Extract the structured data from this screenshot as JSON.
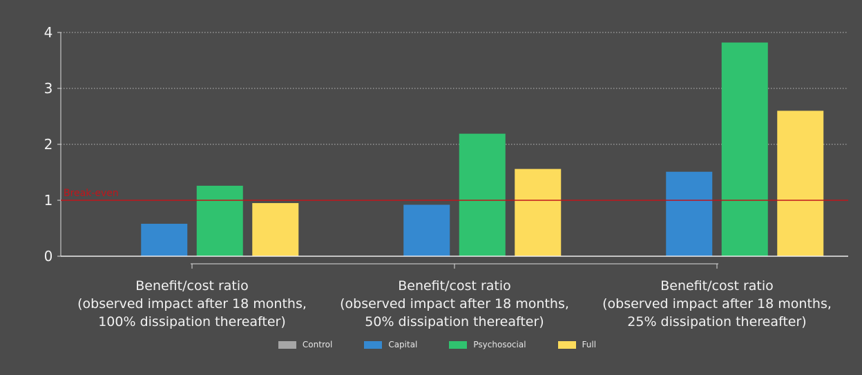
{
  "chart_data": {
    "type": "bar",
    "categories": [
      [
        "Benefit/cost ratio",
        "(observed impact after 18 months,",
        "100% dissipation thereafter)"
      ],
      [
        "Benefit/cost ratio",
        "(observed impact after 18 months,",
        "50% dissipation thereafter)"
      ],
      [
        "Benefit/cost ratio",
        "(observed impact after 18 months,",
        "25% dissipation thereafter)"
      ]
    ],
    "series": [
      {
        "name": "Control",
        "color": "#a6a6a6",
        "values": [
          null,
          null,
          null
        ]
      },
      {
        "name": "Capital",
        "color": "#3589d0",
        "values": [
          0.58,
          0.92,
          1.51
        ]
      },
      {
        "name": "Psychosocial",
        "color": "#30c26f",
        "values": [
          1.26,
          2.19,
          3.82
        ]
      },
      {
        "name": "Full",
        "color": "#fddc5c",
        "values": [
          0.95,
          1.56,
          2.6
        ]
      }
    ],
    "ylim": [
      0,
      4
    ],
    "yticks": [
      0,
      1,
      2,
      3,
      4
    ],
    "grid": "horizontal-dotted",
    "reference_line": {
      "value": 1,
      "label": "Break-even",
      "color": "#c0161c"
    },
    "legend_position": "bottom-center"
  }
}
